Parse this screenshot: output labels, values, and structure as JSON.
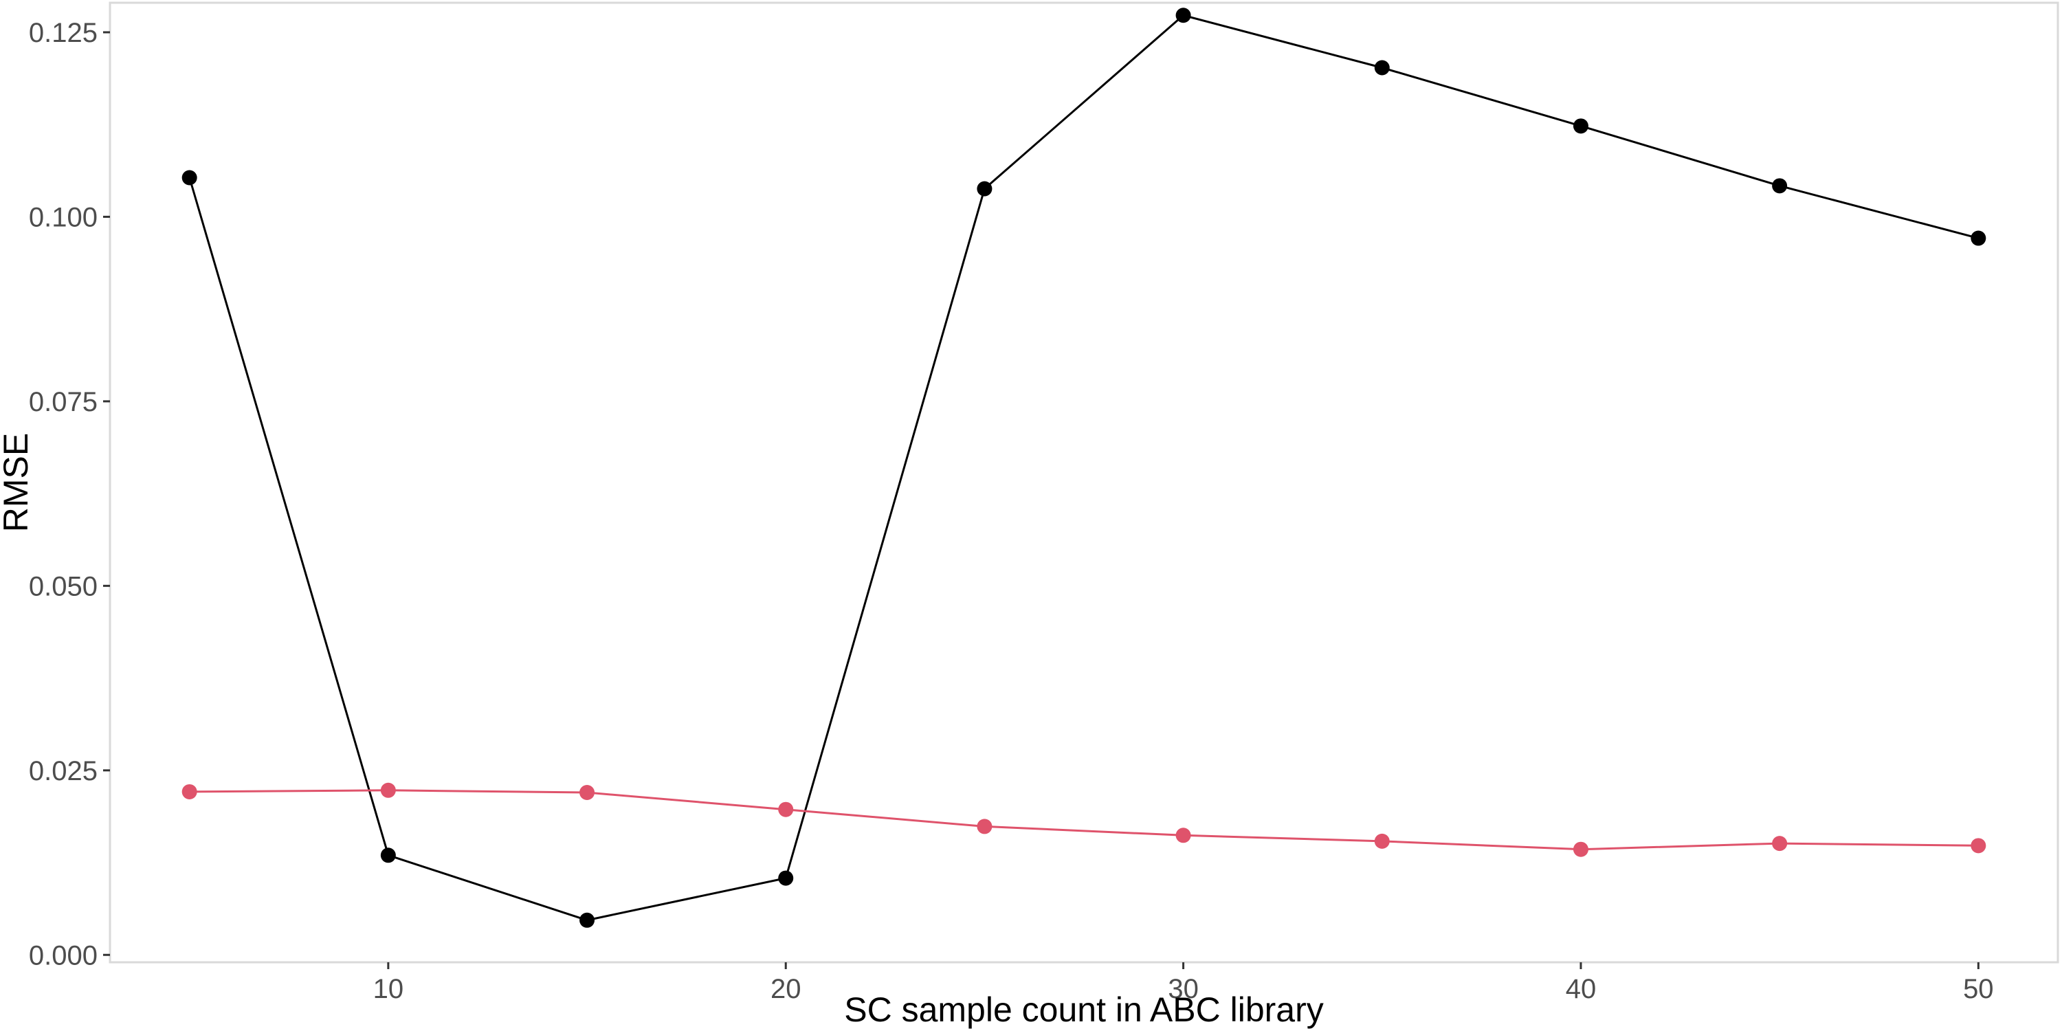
{
  "chart_data": {
    "type": "line",
    "title": "",
    "xlabel": "SC sample count in ABC library",
    "ylabel": "RMSE",
    "x": [
      5,
      10,
      15,
      20,
      25,
      30,
      35,
      40,
      45,
      50
    ],
    "xlim": [
      3,
      52
    ],
    "ylim": [
      -0.001,
      0.129
    ],
    "xticks": [
      10,
      20,
      30,
      40,
      50
    ],
    "xtick_labels": [
      "10",
      "20",
      "30",
      "40",
      "50"
    ],
    "yticks": [
      0,
      0.025,
      0.05,
      0.075,
      0.1,
      0.125
    ],
    "ytick_labels": [
      "0.000",
      "0.025",
      "0.050",
      "0.075",
      "0.100",
      "0.125"
    ],
    "grid": false,
    "legend": "none",
    "series": [
      {
        "color": "#000000",
        "values": [
          0.1053,
          0.0135,
          0.0047,
          0.0104,
          0.1038,
          0.1273,
          0.1202,
          0.1123,
          0.1042,
          0.0971
        ]
      },
      {
        "color": "#DF536B",
        "values": [
          0.0221,
          0.0223,
          0.022,
          0.0197,
          0.0174,
          0.0162,
          0.0154,
          0.0143,
          0.0151,
          0.0148
        ]
      }
    ]
  }
}
